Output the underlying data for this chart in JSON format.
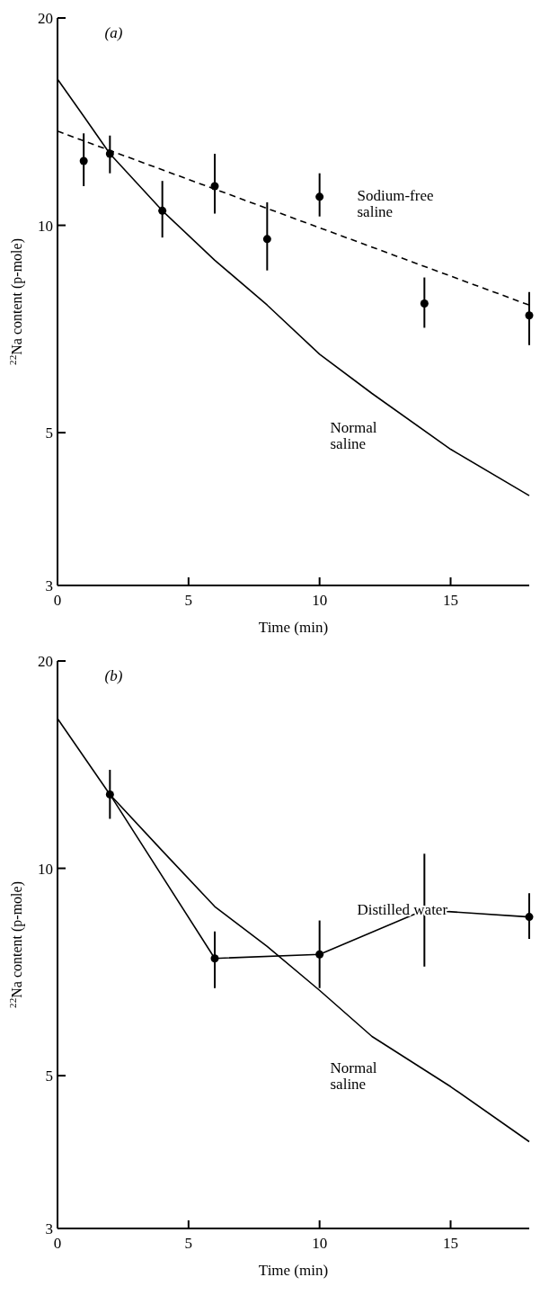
{
  "chart_data": [
    {
      "type": "line",
      "title": "(a)",
      "xlabel": "Time (min)",
      "ylabel": "$^{22}$Na content (p-mole)",
      "log": "y",
      "xlim": [
        0,
        18
      ],
      "xticks": [
        0,
        5,
        10,
        15
      ],
      "ylim": [
        3,
        20
      ],
      "yticks": [
        3,
        5,
        10,
        20
      ],
      "grid": false,
      "series": [
        {
          "type": "scatter",
          "name": "Sodium-free saline",
          "color": "#000000",
          "marker": "circle",
          "x": [
            1,
            2,
            4,
            6,
            8,
            10,
            14,
            18
          ],
          "values": [
            12.4,
            12.7,
            10.5,
            11.4,
            9.55,
            11.0,
            7.7,
            7.4
          ],
          "errors": [
            [
              11.4,
              13.6
            ],
            [
              11.9,
              13.5
            ],
            [
              9.6,
              11.6
            ],
            [
              10.4,
              12.7
            ],
            [
              8.6,
              10.8
            ],
            [
              10.3,
              11.9
            ],
            [
              7.1,
              8.4
            ],
            [
              6.7,
              8.0
            ]
          ]
        },
        {
          "color": "#000000",
          "marker": "none",
          "line_style": "dashed",
          "x": [
            0,
            18
          ],
          "values": [
            13.7,
            7.66
          ]
        },
        {
          "name": "Normal saline",
          "color": "#000000",
          "marker": "none",
          "line_style": "solid",
          "x": [
            0,
            1,
            2,
            4,
            6,
            8,
            10,
            12,
            15,
            18
          ],
          "values": [
            16.3,
            14.4,
            12.7,
            10.5,
            8.9,
            7.66,
            6.5,
            5.7,
            4.73,
            4.05
          ]
        }
      ]
    },
    {
      "type": "line",
      "title": "(b)",
      "xlabel": "Time (min)",
      "ylabel": "$^{22}$Na content (p-mole)",
      "log": "y",
      "xlim": [
        0,
        18
      ],
      "xticks": [
        0,
        5,
        10,
        15
      ],
      "ylim": [
        3,
        20
      ],
      "yticks": [
        3,
        5,
        10,
        20
      ],
      "grid": false,
      "series": [
        {
          "name": "Distilled water",
          "color": "#000000",
          "marker": "circle",
          "line_style": "solid",
          "x": [
            2,
            6,
            10,
            14,
            18
          ],
          "values": [
            12.8,
            7.4,
            7.5,
            8.7,
            8.5
          ],
          "errors": [
            [
              11.8,
              13.9
            ],
            [
              6.7,
              8.1
            ],
            [
              6.7,
              8.4
            ],
            [
              7.2,
              10.5
            ],
            [
              7.9,
              9.2
            ]
          ]
        },
        {
          "name": "Normal saline",
          "color": "#000000",
          "marker": "none",
          "line_style": "solid",
          "x": [
            0,
            2,
            4,
            6,
            8,
            10,
            12,
            15,
            18
          ],
          "values": [
            16.5,
            12.8,
            10.6,
            8.8,
            7.7,
            6.65,
            5.7,
            4.82,
            4.01
          ]
        }
      ]
    }
  ]
}
